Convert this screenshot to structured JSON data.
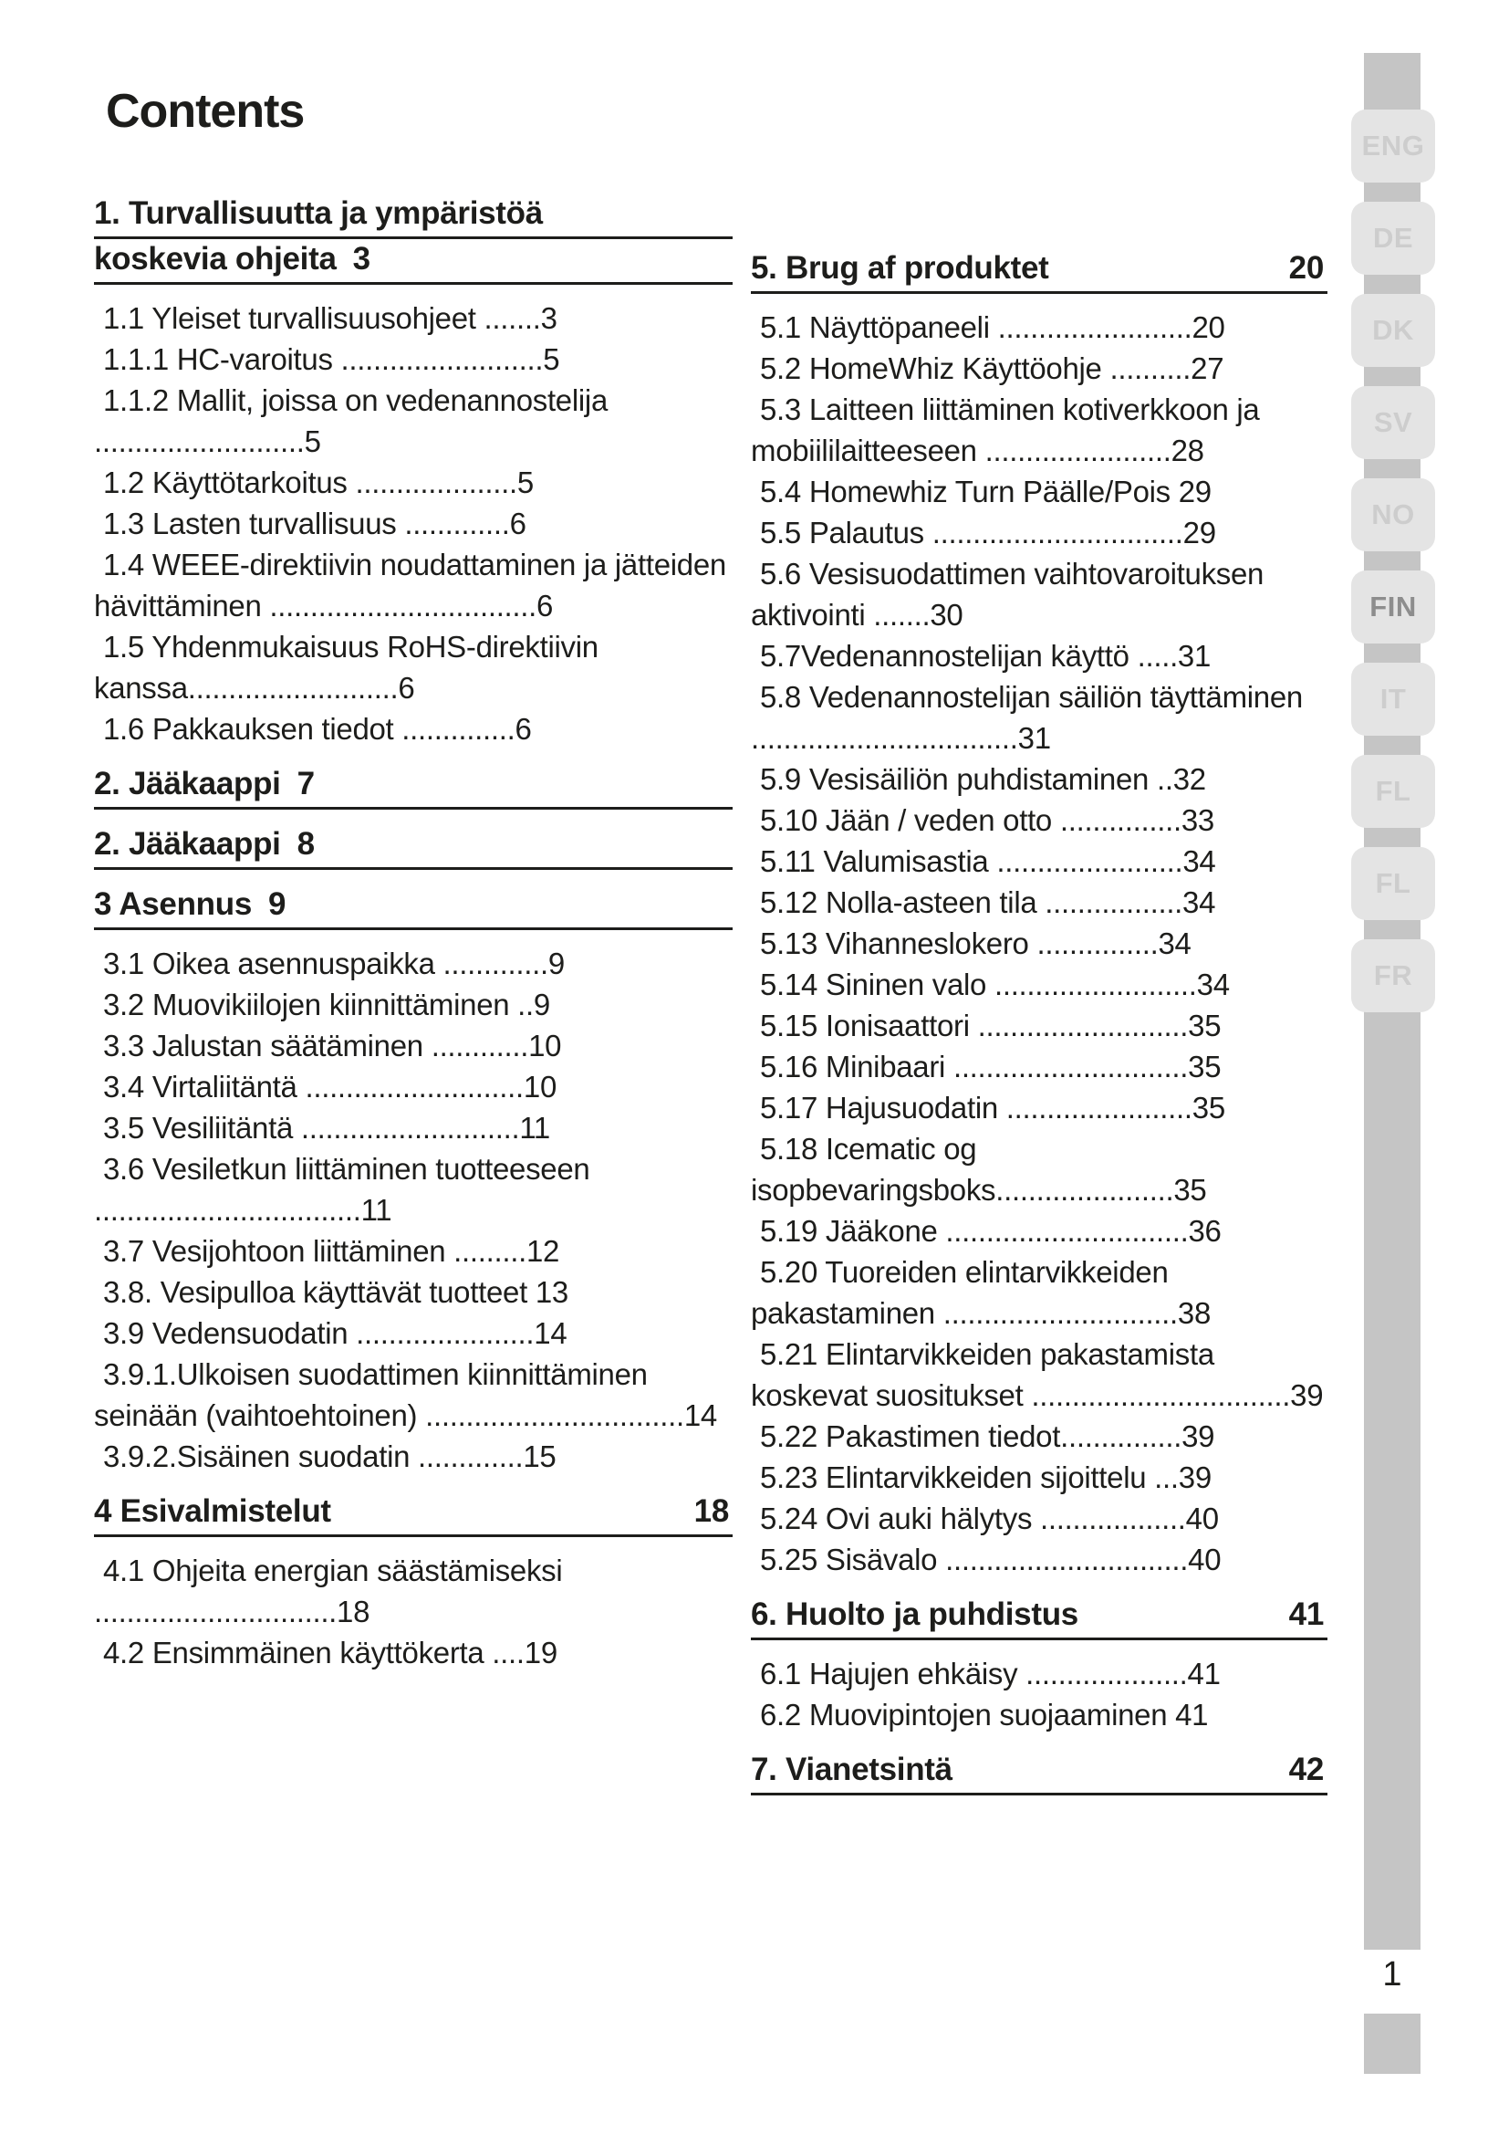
{
  "page": {
    "title": "Contents",
    "page_number": "1"
  },
  "colors": {
    "ink": "#1d1d1b",
    "rail": "#c5c5c5",
    "tab": "#e4e4e4",
    "tab-label": "#cdcdcd",
    "tab-label-active": "#8d8d8d"
  },
  "toc": {
    "left_column": [
      {
        "type": "heading",
        "lines": [
          "1.  Turvallisuutta ja ympäristöä",
          "koskevia ohjeita"
        ],
        "page": "3",
        "page_right": false
      },
      {
        "type": "entry",
        "text": "1.1 Yleiset turvallisuusohjeet .......3"
      },
      {
        "type": "entry",
        "text": "1.1.1 HC-varoitus .........................5"
      },
      {
        "type": "entry",
        "text": "1.1.2 Mallit, joissa on vedenannostelija ..........................5"
      },
      {
        "type": "entry",
        "text": "1.2  Käyttötarkoitus ....................5"
      },
      {
        "type": "entry",
        "text": "1.3  Lasten turvallisuus .............6"
      },
      {
        "type": "entry",
        "text": "1.4  WEEE-direktiivin noudattaminen ja jätteiden hävittäminen .................................6"
      },
      {
        "type": "entry",
        "text": "1.5  Yhdenmukaisuus RoHS-direktiivin kanssa..........................6"
      },
      {
        "type": "entry",
        "text": "1.6  Pakkauksen tiedot ..............6"
      },
      {
        "type": "heading",
        "lines": [
          "2.  Jääkaappi"
        ],
        "page": "7",
        "page_right": false
      },
      {
        "type": "heading",
        "lines": [
          "2.  Jääkaappi"
        ],
        "page": "8",
        "page_right": false
      },
      {
        "type": "heading",
        "lines": [
          "3  Asennus"
        ],
        "page": "9",
        "page_right": false
      },
      {
        "type": "entry",
        "text": "3.1 Oikea asennuspaikka .............9"
      },
      {
        "type": "entry",
        "text": "3.2 Muovikiilojen kiinnittäminen ..9"
      },
      {
        "type": "entry",
        "text": "3.3 Jalustan säätäminen ............10"
      },
      {
        "type": "entry",
        "text": "3.4 Virtaliitäntä ...........................10"
      },
      {
        "type": "entry",
        "text": "3.5 Vesiliitäntä  ...........................11"
      },
      {
        "type": "entry",
        "text": "3.6 Vesiletkun liittäminen tuotteeseen .................................11"
      },
      {
        "type": "entry",
        "text": "3.7 Vesijohtoon liittäminen .........12"
      },
      {
        "type": "entry",
        "text": "3.8. Vesipulloa käyttävät tuotteet 13"
      },
      {
        "type": "entry",
        "text": "3.9 Vedensuodatin ......................14"
      },
      {
        "type": "entry",
        "text": "3.9.1.Ulkoisen suodattimen kiinnittäminen seinään (vaihtoehtoinen) ................................14"
      },
      {
        "type": "entry",
        "text": "3.9.2.Sisäinen suodatin  .............15"
      },
      {
        "type": "heading",
        "lines": [
          "4  Esivalmistelut"
        ],
        "page": "18",
        "page_right": true
      },
      {
        "type": "entry",
        "text": "4.1 Ohjeita energian säästämiseksi ..............................18"
      },
      {
        "type": "entry",
        "text": "4.2 Ensimmäinen käyttökerta ....19"
      }
    ],
    "right_column": [
      {
        "type": "heading",
        "lines": [
          "5. Brug af produktet"
        ],
        "page": "20",
        "page_right": true
      },
      {
        "type": "entry",
        "text": "5.1 Näyttöpaneeli ........................20"
      },
      {
        "type": "entry",
        "text": "5.2 HomeWhiz Käyttöohje ..........27"
      },
      {
        "type": "entry",
        "text": "5.3 Laitteen liittäminen kotiverkkoon ja mobiililaitteeseen .......................28"
      },
      {
        "type": "entry",
        "text": "5.4 Homewhiz Turn Päälle/Pois  29"
      },
      {
        "type": "entry",
        "text": "5.5 Palautus ...............................29"
      },
      {
        "type": "entry",
        "text": "5.6 Vesisuodattimen vaihtovaroituksen aktivointi .......30"
      },
      {
        "type": "entry",
        "text": "5.7Vedenannostelijan käyttö  .....31"
      },
      {
        "type": "entry",
        "text": "5.8 Vedenannostelijan säiliön täyttäminen .................................31"
      },
      {
        "type": "entry",
        "text": "5.9 Vesisäiliön puhdistaminen  ..32"
      },
      {
        "type": "entry",
        "text": "5.10 Jään / veden otto  ...............33"
      },
      {
        "type": "entry",
        "text": "5.11 Valumisastia  .......................34"
      },
      {
        "type": "entry",
        "text": "5.12 Nolla-asteen tila .................34"
      },
      {
        "type": "entry",
        "text": "5.13 Vihanneslokero    ...............34"
      },
      {
        "type": "entry",
        "text": "5.14 Sininen valo .........................34"
      },
      {
        "type": "entry",
        "text": "5.15 Ionisaattori ..........................35"
      },
      {
        "type": "entry",
        "text": "5.16 Minibaari .............................35"
      },
      {
        "type": "entry",
        "text": "5.17 Hajusuodatin .......................35"
      },
      {
        "type": "entry",
        "text": "5.18 Icematic og isopbevaringsboks......................35"
      },
      {
        "type": "entry",
        "text": "5.19 Jääkone  ..............................36"
      },
      {
        "type": "entry",
        "text": "5.20 Tuoreiden elintarvikkeiden pakastaminen .............................38"
      },
      {
        "type": "entry",
        "text": "5.21 Elintarvikkeiden pakastamista koskevat suositukset ................................39"
      },
      {
        "type": "entry",
        "text": "5.22 Pakastimen tiedot...............39"
      },
      {
        "type": "entry",
        "text": "5.23 Elintarvikkeiden sijoittelu ...39"
      },
      {
        "type": "entry",
        "text": "5.24 Ovi auki hälytys  ..................40"
      },
      {
        "type": "entry",
        "text": "5.25 Sisävalo ..............................40"
      },
      {
        "type": "heading",
        "lines": [
          "6.  Huolto ja puhdistus"
        ],
        "page": "41",
        "page_right": true
      },
      {
        "type": "entry",
        "text": "6.1 Hajujen ehkäisy ....................41"
      },
      {
        "type": "entry",
        "text": "6.2 Muovipintojen suojaaminen  41"
      },
      {
        "type": "heading",
        "lines": [
          "7.  Vianetsintä"
        ],
        "page": "42",
        "page_right": true
      }
    ]
  },
  "language_tabs": {
    "items": [
      {
        "code": "ENG",
        "active": false
      },
      {
        "code": "DE",
        "active": false
      },
      {
        "code": "DK",
        "active": false
      },
      {
        "code": "SV",
        "active": false
      },
      {
        "code": "NO",
        "active": false
      },
      {
        "code": "FIN",
        "active": true
      },
      {
        "code": "IT",
        "active": false
      },
      {
        "code": "FL",
        "active": false
      },
      {
        "code": "FL",
        "active": false
      },
      {
        "code": "FR",
        "active": false
      }
    ]
  }
}
